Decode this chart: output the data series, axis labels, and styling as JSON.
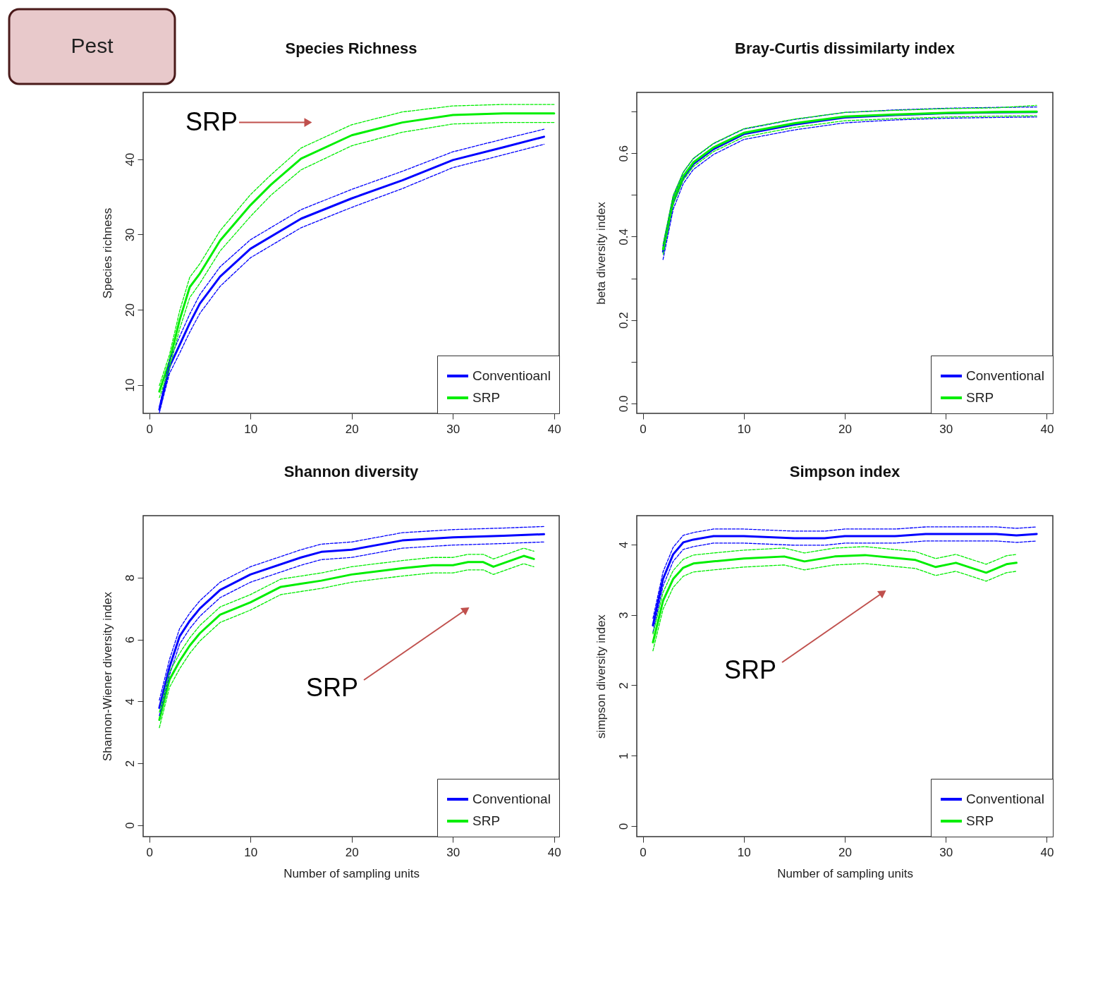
{
  "chart_data": [
    {
      "type": "line",
      "title": "Species Richness",
      "ylabel": "Species richness",
      "xlim": [
        -0.6,
        40.5
      ],
      "ylim": [
        6.2,
        48.9
      ],
      "xticks": [
        0,
        10,
        20,
        30,
        40
      ],
      "yticks": [
        10,
        20,
        30,
        40
      ],
      "legend": "bottom right",
      "annotations": [
        "Pest",
        {
          "text": "SRP",
          "x": 15.7,
          "y": 44.9
        }
      ],
      "series": [
        {
          "name": "Conventioanl",
          "color": "#0000ff",
          "x": [
            1,
            2,
            3,
            4,
            5,
            7,
            10,
            15,
            20,
            25,
            30,
            35,
            39
          ],
          "values": [
            6.7,
            12.4,
            15.3,
            18.2,
            20.8,
            24.4,
            28.1,
            32.1,
            34.8,
            37.2,
            39.9,
            41.6,
            43.0
          ]
        },
        {
          "name": "SRP",
          "color": "#00ee00",
          "x": [
            1,
            2,
            3,
            4,
            5,
            7,
            10,
            12,
            15,
            20,
            25,
            30,
            35,
            40
          ],
          "values": [
            9.1,
            13.1,
            18.6,
            23.0,
            24.8,
            29.2,
            33.9,
            36.6,
            40.1,
            43.2,
            44.9,
            45.9,
            46.1,
            46.1
          ]
        },
        {
          "color": "#0000ff",
          "line_style": "dashed",
          "x": [
            1,
            2,
            3,
            4,
            5,
            7,
            10,
            15,
            20,
            25,
            30,
            35,
            39
          ],
          "values": [
            6.3,
            11.5,
            14.2,
            17.0,
            19.5,
            23.1,
            26.9,
            30.9,
            33.6,
            36.1,
            38.9,
            40.6,
            42.0
          ]
        },
        {
          "color": "#0000ff",
          "line_style": "dashed",
          "x": [
            1,
            2,
            3,
            4,
            5,
            7,
            10,
            15,
            20,
            25,
            30,
            35,
            39
          ],
          "values": [
            7.1,
            13.2,
            16.4,
            19.4,
            22.0,
            25.7,
            29.3,
            33.3,
            36.0,
            38.4,
            41.0,
            42.7,
            44.0
          ]
        },
        {
          "color": "#00ee00",
          "line_style": "dashed",
          "x": [
            1,
            2,
            3,
            4,
            5,
            7,
            10,
            12,
            15,
            20,
            25,
            30,
            35,
            40
          ],
          "values": [
            8.3,
            12.2,
            17.4,
            21.6,
            23.5,
            27.8,
            32.4,
            35.2,
            38.6,
            41.8,
            43.6,
            44.7,
            44.9,
            44.9
          ]
        },
        {
          "color": "#00ee00",
          "line_style": "dashed",
          "x": [
            1,
            2,
            3,
            4,
            5,
            7,
            10,
            12,
            15,
            20,
            25,
            30,
            35,
            40
          ],
          "values": [
            9.9,
            14.0,
            19.8,
            24.3,
            26.1,
            30.5,
            35.3,
            37.9,
            41.5,
            44.6,
            46.3,
            47.1,
            47.3,
            47.3
          ]
        }
      ]
    },
    {
      "type": "line",
      "title": "Bray-Curtis dissimilarty index",
      "ylabel": "beta diversity index",
      "xlim": [
        -0.6,
        40.6
      ],
      "ylim": [
        -0.024,
        0.746
      ],
      "xticks": [
        0,
        10,
        20,
        30,
        40
      ],
      "yticks": [
        {
          "value": 0,
          "label": "0.0"
        },
        {
          "value": 0.1,
          "label": null
        },
        {
          "value": 0.2,
          "label": "0.2"
        },
        {
          "value": 0.3,
          "label": null
        },
        {
          "value": 0.4,
          "label": "0.4"
        },
        {
          "value": 0.5,
          "label": null
        },
        {
          "value": 0.6,
          "label": "0.6"
        },
        {
          "value": 0.7,
          "label": null
        }
      ],
      "legend": "bottom right",
      "series": [
        {
          "name": "Conventional",
          "color": "#0000ff",
          "x": [
            2,
            3,
            4,
            5,
            7,
            10,
            15,
            20,
            25,
            30,
            35,
            39
          ],
          "values": [
            0.364,
            0.482,
            0.541,
            0.574,
            0.61,
            0.646,
            0.669,
            0.686,
            0.692,
            0.696,
            0.698,
            0.699
          ]
        },
        {
          "name": "SRP",
          "color": "#00ee00",
          "x": [
            2,
            3,
            4,
            5,
            7,
            10,
            15,
            20,
            25,
            30,
            35,
            39
          ],
          "values": [
            0.37,
            0.488,
            0.545,
            0.578,
            0.614,
            0.649,
            0.672,
            0.688,
            0.693,
            0.697,
            0.699,
            0.7
          ]
        },
        {
          "color": "#0000ff",
          "line_style": "dashed",
          "x": [
            2,
            3,
            4,
            5,
            7,
            10,
            15,
            20,
            25,
            30,
            35,
            39
          ],
          "values": [
            0.345,
            0.465,
            0.527,
            0.561,
            0.597,
            0.633,
            0.656,
            0.673,
            0.68,
            0.684,
            0.686,
            0.687
          ]
        },
        {
          "color": "#0000ff",
          "line_style": "dashed",
          "x": [
            2,
            3,
            4,
            5,
            7,
            10,
            15,
            20,
            25,
            30,
            35,
            39
          ],
          "values": [
            0.378,
            0.497,
            0.554,
            0.587,
            0.623,
            0.658,
            0.681,
            0.698,
            0.704,
            0.708,
            0.71,
            0.711
          ]
        },
        {
          "color": "#00ee00",
          "line_style": "dashed",
          "x": [
            2,
            3,
            4,
            5,
            7,
            10,
            15,
            20,
            25,
            30,
            35,
            39
          ],
          "values": [
            0.358,
            0.477,
            0.535,
            0.568,
            0.604,
            0.639,
            0.662,
            0.678,
            0.683,
            0.687,
            0.689,
            0.69
          ]
        },
        {
          "color": "#00ee00",
          "line_style": "dashed",
          "x": [
            2,
            3,
            4,
            5,
            7,
            10,
            15,
            20,
            25,
            30,
            35,
            39
          ],
          "values": [
            0.382,
            0.499,
            0.555,
            0.588,
            0.624,
            0.659,
            0.682,
            0.698,
            0.703,
            0.707,
            0.709,
            0.715
          ]
        }
      ]
    },
    {
      "type": "line",
      "title": "Shannon diversity",
      "xlabel": "Number of sampling units",
      "ylabel": "Shannon-Wiener diversity index",
      "xlim": [
        -0.6,
        40.5
      ],
      "ylim": [
        -0.37,
        10.0
      ],
      "xticks": [
        0,
        10,
        20,
        30,
        40
      ],
      "yticks": [
        0,
        2,
        4,
        6,
        8
      ],
      "legend": "bottom right",
      "annotations": [
        "SRP"
      ],
      "series": [
        {
          "name": "Conventional",
          "color": "#0000ff",
          "x": [
            1,
            2,
            3,
            4,
            5,
            7,
            10,
            15,
            17,
            20,
            25,
            30,
            35,
            39
          ],
          "values": [
            3.79,
            5.1,
            6.1,
            6.6,
            7.0,
            7.6,
            8.1,
            8.65,
            8.83,
            8.9,
            9.2,
            9.3,
            9.35,
            9.4
          ]
        },
        {
          "name": "SRP",
          "color": "#00ee00",
          "x": [
            1,
            2,
            3,
            4,
            5,
            7,
            10,
            13,
            15,
            17,
            20,
            25,
            28,
            30,
            31.5,
            33,
            34,
            37,
            38
          ],
          "values": [
            3.4,
            4.7,
            5.3,
            5.8,
            6.2,
            6.8,
            7.2,
            7.7,
            7.8,
            7.9,
            8.1,
            8.3,
            8.4,
            8.4,
            8.5,
            8.5,
            8.35,
            8.7,
            8.6
          ]
        },
        {
          "color": "#0000ff",
          "line_style": "dashed",
          "x": [
            1,
            2,
            3,
            4,
            5,
            7,
            10,
            15,
            17,
            20,
            25,
            30,
            35,
            39
          ],
          "values": [
            3.54,
            4.85,
            5.85,
            6.35,
            6.75,
            7.35,
            7.85,
            8.4,
            8.58,
            8.65,
            8.95,
            9.05,
            9.1,
            9.15
          ]
        },
        {
          "color": "#0000ff",
          "line_style": "dashed",
          "x": [
            1,
            2,
            3,
            4,
            5,
            7,
            10,
            15,
            17,
            20,
            25,
            30,
            35,
            39
          ],
          "values": [
            4.04,
            5.35,
            6.35,
            6.85,
            7.25,
            7.85,
            8.35,
            8.9,
            9.08,
            9.15,
            9.45,
            9.55,
            9.6,
            9.65
          ]
        },
        {
          "color": "#00ee00",
          "line_style": "dashed",
          "x": [
            1,
            2,
            3,
            4,
            5,
            7,
            10,
            13,
            15,
            17,
            20,
            25,
            28,
            30,
            31.5,
            33,
            34,
            37,
            38
          ],
          "values": [
            3.15,
            4.45,
            5.05,
            5.55,
            5.95,
            6.55,
            6.95,
            7.45,
            7.55,
            7.65,
            7.85,
            8.05,
            8.15,
            8.15,
            8.25,
            8.25,
            8.1,
            8.45,
            8.35
          ]
        },
        {
          "color": "#00ee00",
          "line_style": "dashed",
          "x": [
            1,
            2,
            3,
            4,
            5,
            7,
            10,
            13,
            15,
            17,
            20,
            25,
            28,
            30,
            31.5,
            33,
            34,
            37,
            38
          ],
          "values": [
            3.65,
            4.95,
            5.55,
            6.05,
            6.45,
            7.05,
            7.45,
            7.95,
            8.05,
            8.15,
            8.35,
            8.55,
            8.65,
            8.65,
            8.75,
            8.75,
            8.6,
            8.95,
            8.85
          ]
        }
      ]
    },
    {
      "type": "line",
      "title": "Simpson index",
      "xlabel": "Number of sampling units",
      "ylabel": "simpson diversity index",
      "xlim": [
        -0.6,
        40.6
      ],
      "ylim": [
        -0.15,
        4.41
      ],
      "xticks": [
        0,
        10,
        20,
        30,
        40
      ],
      "yticks": [
        0,
        1,
        2,
        3,
        4
      ],
      "legend": "bottom right",
      "annotations": [
        "SRP"
      ],
      "series": [
        {
          "name": "Conventional",
          "color": "#0000ff",
          "x": [
            1,
            2,
            3,
            4,
            5,
            7,
            10,
            15,
            18,
            20,
            25,
            28,
            35,
            37,
            39
          ],
          "values": [
            2.85,
            3.51,
            3.86,
            4.03,
            4.07,
            4.12,
            4.12,
            4.09,
            4.09,
            4.12,
            4.12,
            4.15,
            4.15,
            4.13,
            4.15
          ]
        },
        {
          "name": "SRP",
          "color": "#00ee00",
          "x": [
            1,
            2,
            3,
            4,
            5,
            7,
            10,
            14,
            16,
            19,
            22,
            27,
            29,
            31,
            34,
            36,
            37
          ],
          "values": [
            2.61,
            3.2,
            3.51,
            3.67,
            3.73,
            3.76,
            3.8,
            3.83,
            3.76,
            3.83,
            3.85,
            3.78,
            3.68,
            3.74,
            3.6,
            3.72,
            3.74
          ]
        },
        {
          "color": "#0000ff",
          "line_style": "dashed",
          "x": [
            1,
            2,
            3,
            4,
            5,
            7,
            10,
            15,
            18,
            20,
            25,
            28,
            35,
            37,
            39
          ],
          "values": [
            2.75,
            3.41,
            3.76,
            3.93,
            3.97,
            4.02,
            4.02,
            3.99,
            3.99,
            4.02,
            4.02,
            4.05,
            4.05,
            4.03,
            4.05
          ]
        },
        {
          "color": "#0000ff",
          "line_style": "dashed",
          "x": [
            1,
            2,
            3,
            4,
            5,
            7,
            10,
            15,
            18,
            20,
            25,
            28,
            35,
            37,
            39
          ],
          "values": [
            2.95,
            3.61,
            3.96,
            4.13,
            4.17,
            4.22,
            4.22,
            4.19,
            4.19,
            4.22,
            4.22,
            4.25,
            4.25,
            4.23,
            4.25
          ]
        },
        {
          "color": "#00ee00",
          "line_style": "dashed",
          "x": [
            1,
            2,
            3,
            4,
            5,
            7,
            10,
            14,
            16,
            19,
            22,
            27,
            29,
            31,
            34,
            36,
            37
          ],
          "values": [
            2.49,
            3.08,
            3.39,
            3.55,
            3.61,
            3.64,
            3.68,
            3.71,
            3.64,
            3.71,
            3.73,
            3.66,
            3.56,
            3.62,
            3.48,
            3.6,
            3.62
          ]
        },
        {
          "color": "#00ee00",
          "line_style": "dashed",
          "x": [
            1,
            2,
            3,
            4,
            5,
            7,
            10,
            14,
            16,
            19,
            22,
            27,
            29,
            31,
            34,
            36,
            37
          ],
          "values": [
            2.73,
            3.32,
            3.63,
            3.79,
            3.85,
            3.88,
            3.92,
            3.95,
            3.88,
            3.95,
            3.97,
            3.9,
            3.8,
            3.86,
            3.72,
            3.84,
            3.86
          ]
        }
      ]
    }
  ]
}
